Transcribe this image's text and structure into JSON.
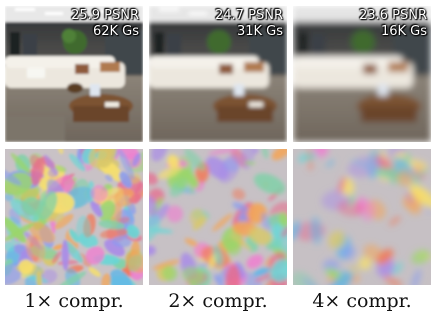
{
  "columns": [
    {
      "psnr": "25.9 PSNR",
      "gaussians": "62K Gs",
      "caption": "1× compr."
    },
    {
      "psnr": "24.7 PSNR",
      "gaussians": "31K Gs",
      "caption": "2× compr."
    },
    {
      "psnr": "23.6 PSNR",
      "gaussians": "16K Gs",
      "caption": "4× compr."
    }
  ]
}
